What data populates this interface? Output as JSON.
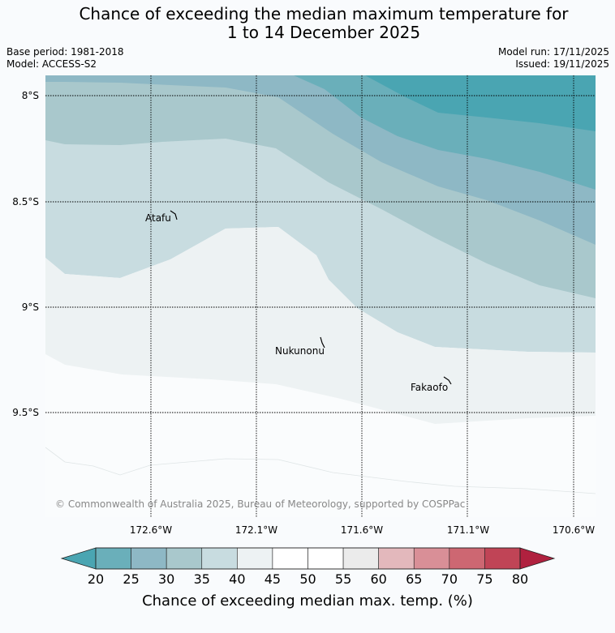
{
  "title": {
    "line1": "Chance of exceeding the median maximum temperature for",
    "line2": "1 to 14 December 2025"
  },
  "meta": {
    "base_period": "Base period: 1981-2018",
    "model": "Model: ACCESS-S2",
    "model_run": "Model run: 17/11/2025",
    "issued": "Issued: 19/11/2025"
  },
  "map": {
    "lat_labels": [
      "8°S",
      "8.5°S",
      "9°S",
      "9.5°S"
    ],
    "lon_labels": [
      "172.6°W",
      "172.1°W",
      "171.6°W",
      "171.1°W",
      "170.6°W"
    ],
    "places": [
      {
        "name": "Atafu"
      },
      {
        "name": "Nukunonu"
      },
      {
        "name": "Fakaofo"
      }
    ],
    "copyright": "© Commonwealth of Australia 2025, Bureau of Meteorology, supported by COSPPac"
  },
  "colorbar": {
    "ticks": [
      "20",
      "25",
      "30",
      "35",
      "40",
      "45",
      "50",
      "55",
      "60",
      "65",
      "70",
      "75",
      "80"
    ],
    "colors": [
      "#4aa5b2",
      "#6aafba",
      "#8eb8c5",
      "#a9c8cc",
      "#c8dce0",
      "#edf2f3",
      "#ffffff",
      "#ffffff",
      "#ebebeb",
      "#e3b8bc",
      "#d98f97",
      "#cd6772",
      "#c04456",
      "#b0213f"
    ],
    "label": "Chance of exceeding median max. temp. (%)"
  }
}
